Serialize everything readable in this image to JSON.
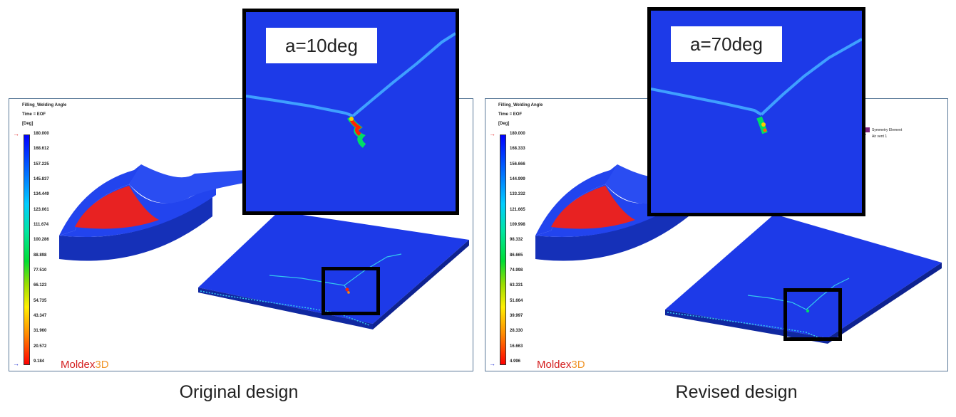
{
  "left": {
    "result_name": "Filling_Welding Angle",
    "time": "Time = EOF",
    "unit": "[Deg]",
    "ticks": [
      "180.000",
      "168.612",
      "157.225",
      "145.837",
      "134.449",
      "123.061",
      "111.674",
      "100.286",
      "88.898",
      "77.510",
      "66.123",
      "54.735",
      "43.347",
      "31.960",
      "20.572",
      "9.184"
    ],
    "angle_label": "a=10deg",
    "caption": "Original design",
    "brand_main": "Moldex",
    "brand_suffix": "3D"
  },
  "right": {
    "result_name": "Filling_Welding Angle",
    "time": "Time = EOF",
    "unit": "[Deg]",
    "ticks": [
      "180.000",
      "168.333",
      "156.666",
      "144.999",
      "133.332",
      "121.665",
      "109.998",
      "98.332",
      "86.665",
      "74.998",
      "63.331",
      "51.664",
      "39.997",
      "28.330",
      "16.663",
      "4.996"
    ],
    "angle_label": "a=70deg",
    "caption": "Revised design",
    "legend_items": [
      "Symmetry Element",
      "Air vent 1"
    ],
    "brand_main": "Moldex",
    "brand_suffix": "3D"
  },
  "colors": {
    "frame": "#5b7a99",
    "model_blue": "#1d3ae8",
    "gate_red": "#e82222",
    "weld_cyan": "#33c8ee",
    "hot_red": "#ff2200"
  }
}
